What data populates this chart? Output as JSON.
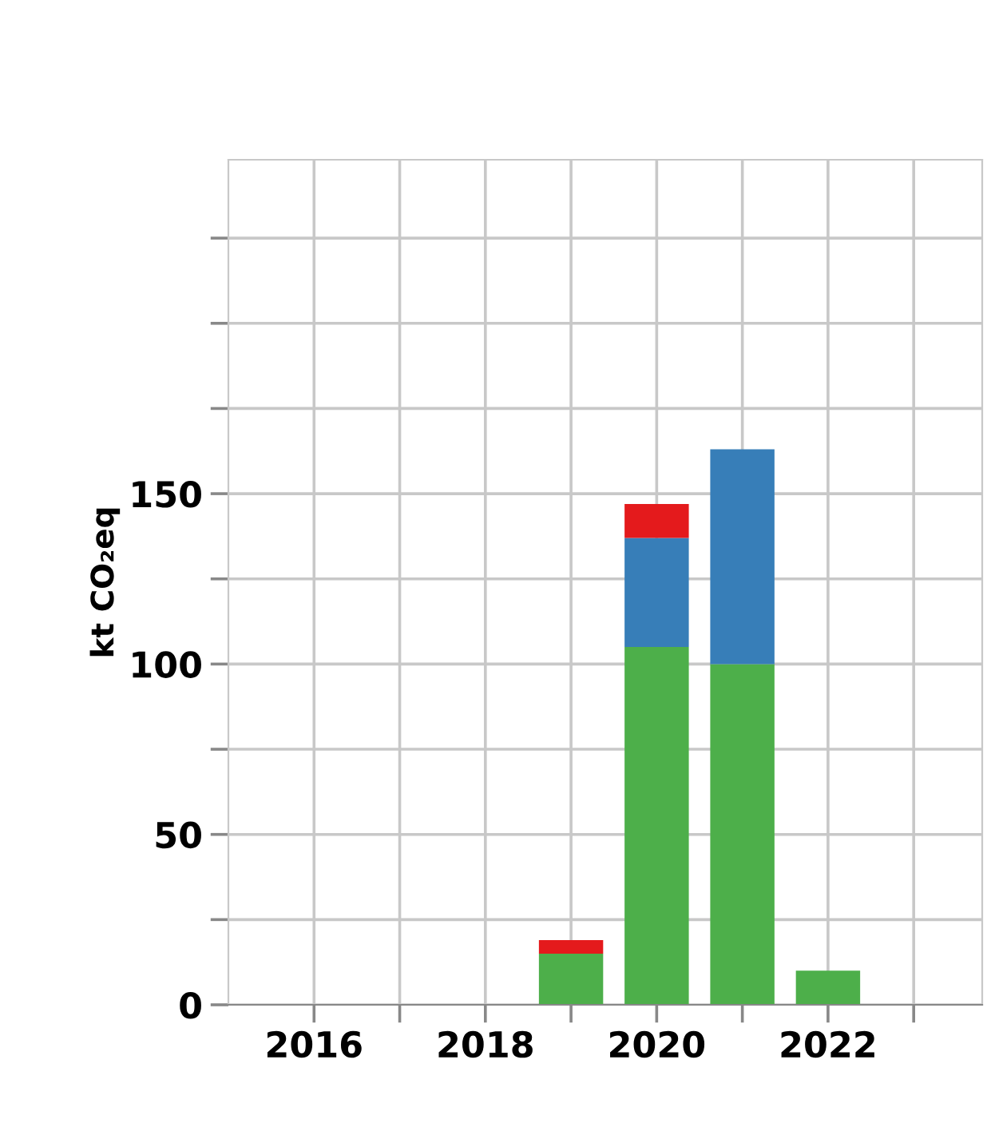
{
  "chart_data": {
    "type": "bar",
    "stacked": true,
    "ylabel": "kt CO₂eq",
    "x": [
      2019,
      2020,
      2021,
      2022
    ],
    "series": [
      {
        "color": "#4daf4a",
        "values": [
          15,
          105,
          100,
          10
        ]
      },
      {
        "color": "#377eb8",
        "values": [
          0,
          32,
          63,
          0
        ]
      },
      {
        "color": "#e41a1c",
        "values": [
          4,
          10,
          0,
          0
        ]
      }
    ],
    "xlim": [
      2015,
      2023.8
    ],
    "xticks": [
      2016,
      {
        "value": 2017,
        "label": null
      },
      2018,
      {
        "value": 2019,
        "label": null
      },
      2020,
      {
        "value": 2021,
        "label": null
      },
      2022,
      {
        "value": 2023,
        "label": null
      }
    ],
    "ylim": [
      0,
      248
    ],
    "yticks": [
      0,
      {
        "value": 25,
        "label": null
      },
      50,
      {
        "value": 75,
        "label": null
      },
      100,
      {
        "value": 125,
        "label": null
      },
      150,
      {
        "value": 175,
        "label": null
      },
      {
        "value": 200,
        "label": null
      },
      {
        "value": 225,
        "label": null
      }
    ],
    "grid": true,
    "legend": false
  }
}
